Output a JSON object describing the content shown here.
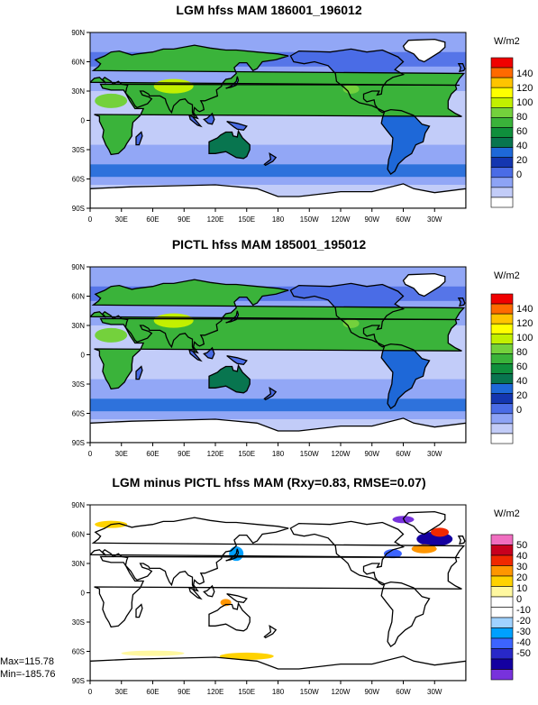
{
  "panels": [
    {
      "id": "lgm",
      "title": "LGM hfss MAM 186001_196012",
      "units": "W/m2",
      "legend_labels": [
        "140",
        "120",
        "100",
        "80",
        "60",
        "40",
        "20",
        "0"
      ],
      "legend_colors": [
        "#f00000",
        "#ff6a00",
        "#ffc400",
        "#ffff00",
        "#c2f000",
        "#74d13c",
        "#3ab33a",
        "#0f8f3c",
        "#08754f",
        "#1e68d8",
        "#1436b0",
        "#4a6ce6",
        "#8da3f5",
        "#c2ccf8",
        "#ffffff"
      ]
    },
    {
      "id": "pictl",
      "title": "PICTL hfss MAM 185001_195012",
      "units": "W/m2",
      "legend_labels": [
        "140",
        "120",
        "100",
        "80",
        "60",
        "40",
        "20",
        "0"
      ],
      "legend_colors": [
        "#f00000",
        "#ff6a00",
        "#ffc400",
        "#ffff00",
        "#c2f000",
        "#74d13c",
        "#3ab33a",
        "#0f8f3c",
        "#08754f",
        "#1e68d8",
        "#1436b0",
        "#4a6ce6",
        "#8da3f5",
        "#c2ccf8",
        "#ffffff"
      ]
    },
    {
      "id": "diff",
      "title": "LGM minus PICTL hfss MAM (Rxy=0.83, RMSE=0.07)",
      "units": "W/m2",
      "legend_labels": [
        "50",
        "40",
        "30",
        "20",
        "10",
        "0",
        "-10",
        "-20",
        "-30",
        "-40",
        "-50"
      ],
      "legend_colors": [
        "#f06ec0",
        "#c8001e",
        "#f02800",
        "#ff9600",
        "#ffd200",
        "#fff8a0",
        "#ffffff",
        "#ffffff",
        "#a0d2ff",
        "#00a0ff",
        "#3c64ff",
        "#2828c8",
        "#1400a0",
        "#7832dc"
      ]
    }
  ],
  "axes": {
    "lat_ticks": [
      "90N",
      "60N",
      "30N",
      "0",
      "30S",
      "60S",
      "90S"
    ],
    "lon_ticks": [
      "0",
      "30E",
      "60E",
      "90E",
      "120E",
      "150E",
      "180",
      "150W",
      "120W",
      "90W",
      "60W",
      "30W"
    ]
  },
  "stats": {
    "max": "Max=115.78",
    "min": "Min=-185.76"
  }
}
